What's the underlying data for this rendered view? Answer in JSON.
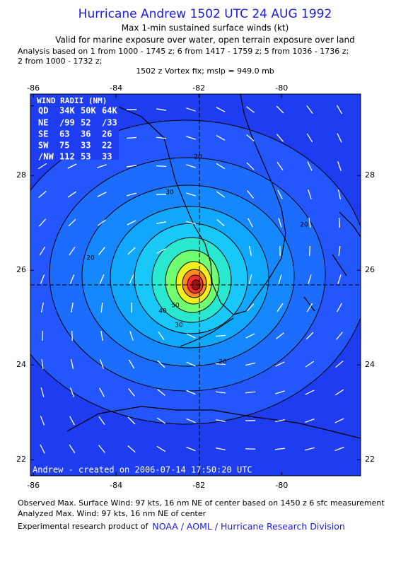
{
  "header": {
    "title": "Hurricane Andrew 1502 UTC 24 AUG 1992",
    "subtitle": "Max 1-min sustained surface winds (kt)",
    "validity": "Valid for marine exposure over water, open terrain exposure over land",
    "analysis_line1": "Analysis based on  1 from 1000 - 1745 z;  6 from 1417 - 1759 z;  5 from 1036 - 1736 z;",
    "analysis_line2": "2 from 1000 - 1732 z;",
    "vortex_fix": "1502 z Vortex fix; mslp = 949.0 mb"
  },
  "map": {
    "lonlim": [
      -86.07,
      -78.09
    ],
    "latlim": [
      21.66,
      29.72
    ],
    "lon_ticks": [
      -86,
      -84,
      -82,
      -80
    ],
    "lat_ticks": [
      22,
      24,
      26,
      28
    ],
    "wind_radii": {
      "title": "WIND RADII (NM)",
      "header": [
        "QD",
        "34K",
        "50K",
        "64K"
      ],
      "rows": [
        [
          "NE",
          "/99",
          "52",
          "/33"
        ],
        [
          "SE",
          "63",
          "36",
          "26"
        ],
        [
          "SW",
          "75",
          "33",
          "22"
        ],
        [
          "/NW",
          "112",
          "53",
          "33"
        ]
      ]
    },
    "contour_labels": [
      "20",
      "20",
      "20",
      "30",
      "30",
      "40",
      "50",
      "20"
    ],
    "credit": "Andrew - created on 2006-07-14 17:50:20 UTC"
  },
  "footer": {
    "observed": "Observed Max. Surface Wind: 97 kts, 16 nm NE of center based on 1450 z 6 sfc measurement",
    "analyzed": "Analyzed Max. Wind: 97 kts, 16 nm NE of center",
    "product": "Experimental research product of",
    "org": "NOAA / AOML / Hurricane Research Division"
  }
}
